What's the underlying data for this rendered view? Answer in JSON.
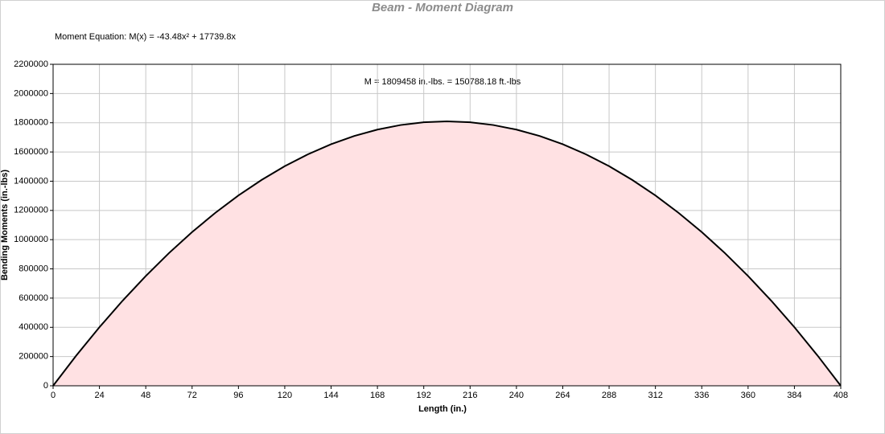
{
  "chart_data": {
    "type": "area",
    "title": "Beam - Moment Diagram",
    "equation": "Moment Equation:  M(x) = -43.48x² + 17739.8x",
    "annotation": "M = 1809458 in.-lbs. = 150788.18 ft.-lbs",
    "x_label": "Length (in.)",
    "y_label": "Bending Moments (in.-lbs)",
    "x": [
      0,
      12,
      24,
      36,
      48,
      60,
      72,
      84,
      96,
      108,
      120,
      132,
      144,
      156,
      168,
      180,
      192,
      204,
      216,
      228,
      240,
      252,
      264,
      276,
      288,
      300,
      312,
      324,
      336,
      348,
      360,
      372,
      384,
      396,
      408
    ],
    "series": [
      {
        "name": "Moment",
        "color": "#000000",
        "fill": "#ffe1e3",
        "values": [
          0,
          206616,
          400711,
          582283,
          751332,
          907860,
          1051865,
          1183348,
          1302309,
          1408748,
          1502664,
          1584058,
          1652930,
          1709280,
          1753107,
          1784412,
          1803195,
          1809456,
          1803194,
          1784410,
          1753104,
          1709276,
          1652925,
          1584052,
          1502657,
          1408740,
          1302300,
          1183339,
          1051855,
          907848,
          751320,
          582269,
          400696,
          206601,
          0
        ]
      }
    ],
    "xlim": [
      0,
      408
    ],
    "xticks": [
      0,
      24,
      48,
      72,
      96,
      120,
      144,
      168,
      192,
      216,
      240,
      264,
      288,
      312,
      336,
      360,
      384,
      408
    ],
    "ylim": [
      0,
      2200000
    ],
    "yticks": [
      0,
      200000,
      400000,
      600000,
      800000,
      1000000,
      1200000,
      1400000,
      1600000,
      1800000,
      2000000,
      2200000
    ],
    "grid": true
  }
}
